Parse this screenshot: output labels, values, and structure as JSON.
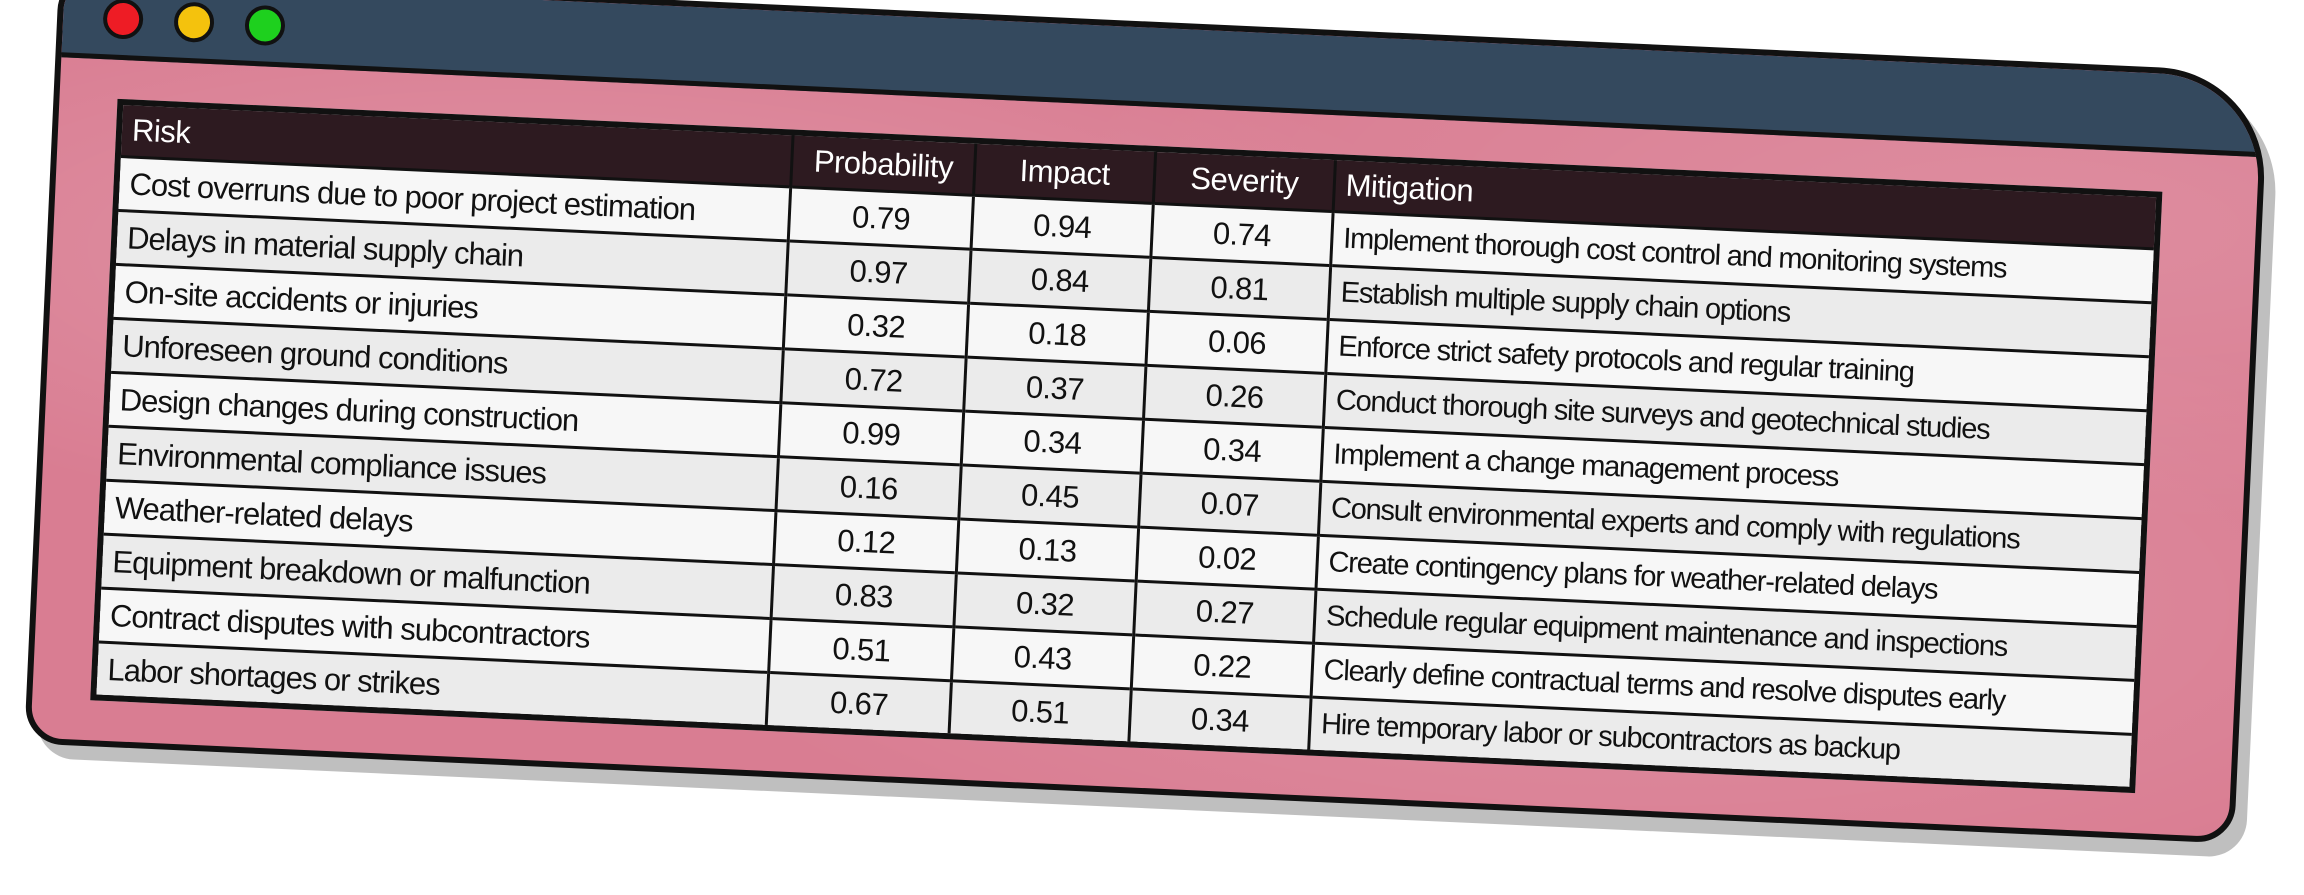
{
  "window": {
    "controls": [
      "close",
      "minimize",
      "maximize"
    ]
  },
  "table": {
    "headers": {
      "risk": "Risk",
      "probability": "Probability",
      "impact": "Impact",
      "severity": "Severity",
      "mitigation": "Mitigation"
    },
    "rows": [
      {
        "risk": "Cost overruns due to poor project estimation",
        "probability": "0.79",
        "impact": "0.94",
        "severity": "0.74",
        "mitigation": "Implement thorough cost control and monitoring systems"
      },
      {
        "risk": "Delays in material supply  chain",
        "probability": "0.97",
        "impact": "0.84",
        "severity": "0.81",
        "mitigation": "Establish multiple  supply  chain options"
      },
      {
        "risk": "On-site accidents or injuries",
        "probability": "0.32",
        "impact": "0.18",
        "severity": "0.06",
        "mitigation": "Enforce strict safety protocols  and regular training"
      },
      {
        "risk": "Unforeseen ground  conditions",
        "probability": "0.72",
        "impact": "0.37",
        "severity": "0.26",
        "mitigation": "Conduct thorough  site surveys and geotechnical studies"
      },
      {
        "risk": "Design changes during  construction",
        "probability": "0.99",
        "impact": "0.34",
        "severity": "0.34",
        "mitigation": "Implement  a change management process"
      },
      {
        "risk": "Environmental  compliance  issues",
        "probability": "0.16",
        "impact": "0.45",
        "severity": "0.07",
        "mitigation": "Consult  environmental experts and comply  with regulations"
      },
      {
        "risk": "Weather-related delays",
        "probability": "0.12",
        "impact": "0.13",
        "severity": "0.02",
        "mitigation": "Create contingency  plans for weather-related delays"
      },
      {
        "risk": "Equipment breakdown or malfunction",
        "probability": "0.83",
        "impact": "0.32",
        "severity": "0.27",
        "mitigation": "Schedule regular equipment maintenance and inspections"
      },
      {
        "risk": "Contract disputes with subcontractors",
        "probability": "0.51",
        "impact": "0.43",
        "severity": "0.22",
        "mitigation": "Clearly define contractual terms and resolve disputes early"
      },
      {
        "risk": "Labor shortages or strikes",
        "probability": "0.67",
        "impact": "0.51",
        "severity": "0.34",
        "mitigation": "Hire temporary labor or subcontractors  as backup"
      }
    ]
  },
  "colors": {
    "titlebar": "#34495e",
    "window_background": "#d97d92",
    "header_background": "#2d1a20",
    "close": "#ee1c25",
    "minimize": "#f4c20d",
    "maximize": "#1ed01e"
  }
}
